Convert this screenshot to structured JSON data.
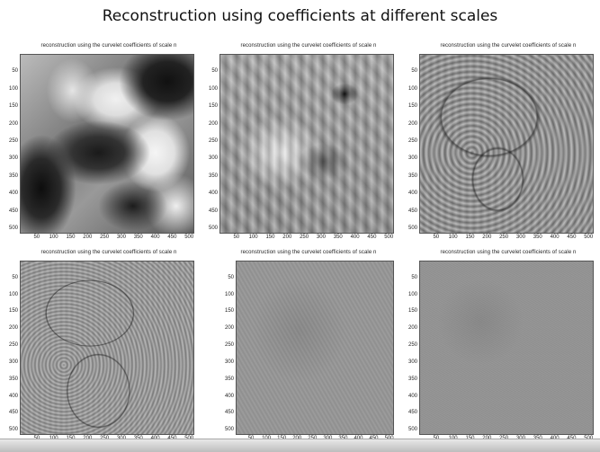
{
  "title": "Reconstruction using coefficients at different scales",
  "panel_caption": "reconstruction using the curvelet coefficients of scale n",
  "y_ticks": [
    "50",
    "100",
    "150",
    "200",
    "250",
    "300",
    "350",
    "400",
    "450",
    "500"
  ],
  "x_ticks": [
    "50",
    "100",
    "150",
    "200",
    "250",
    "300",
    "350",
    "400",
    "450",
    "500"
  ],
  "panels": [
    {
      "id": "scale-1",
      "detail": "coarse blurred"
    },
    {
      "id": "scale-2",
      "detail": "medium-coarse wavy"
    },
    {
      "id": "scale-3",
      "detail": "medium edges"
    },
    {
      "id": "scale-4",
      "detail": "fine edges"
    },
    {
      "id": "scale-5",
      "detail": "very fine faint"
    },
    {
      "id": "scale-6",
      "detail": "finest speckle"
    }
  ],
  "colors": {
    "background": "#ffffff",
    "footer": "#c8c8c8",
    "gray_mid": "#8c8c8c"
  }
}
